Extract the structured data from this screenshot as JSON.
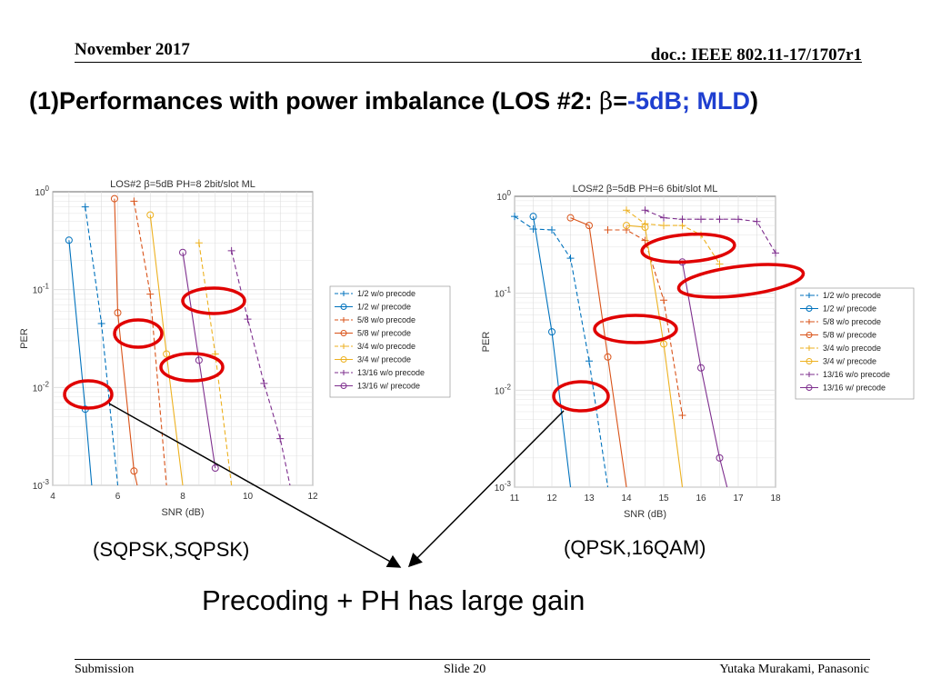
{
  "header": {
    "date": "November 2017",
    "doc": "doc.: IEEE 802.11-17/1707r1"
  },
  "title": {
    "prefix": "(1)Performances with power imbalance (LOS #2: ",
    "beta": "β",
    "eq": "=",
    "value": "-5dB; MLD",
    "close": ")"
  },
  "labels": {
    "left": "(SQPSK,SQPSK)",
    "right": "(QPSK,16QAM)",
    "gain": "Precoding + PH has large gain"
  },
  "footer": {
    "left": "Submission",
    "center": "Slide 20",
    "right": "Yutaka Murakami, Panasonic"
  },
  "colors": {
    "blue": "#0072BD",
    "orange": "#D95319",
    "yellow": "#EDB120",
    "purple": "#7E2F8E",
    "annotation": "#e00000"
  },
  "chart_data": [
    {
      "type": "line",
      "title": "LOS#2 β=5dB PH=8 2bit/slot ML",
      "xlabel": "SNR (dB)",
      "ylabel": "PER",
      "xlim": [
        4,
        12
      ],
      "ylim": [
        0.001,
        1
      ],
      "yscale": "log",
      "xticks": [
        "4",
        "6",
        "8",
        "10",
        "12"
      ],
      "yticks": [
        "10^0",
        "10^-1",
        "10^-2",
        "10^-3"
      ],
      "grid": true,
      "legend_position": "right",
      "series": [
        {
          "name": "1/2 w/o precode",
          "color": "blue",
          "dash": true,
          "marker": "+",
          "x": [
            5.0,
            5.5,
            6.0
          ],
          "y": [
            0.7,
            0.045,
            0.001
          ]
        },
        {
          "name": "1/2 w/ precode",
          "color": "blue",
          "dash": false,
          "marker": "o",
          "x": [
            4.5,
            5.0,
            5.2
          ],
          "y": [
            0.32,
            0.006,
            0.001
          ]
        },
        {
          "name": "5/8 w/o precode",
          "color": "orange",
          "dash": true,
          "marker": "+",
          "x": [
            6.5,
            7.0,
            7.5
          ],
          "y": [
            0.8,
            0.09,
            0.001
          ]
        },
        {
          "name": "5/8 w/ precode",
          "color": "orange",
          "dash": false,
          "marker": "o",
          "x": [
            5.9,
            6.0,
            6.5,
            6.6
          ],
          "y": [
            0.85,
            0.058,
            0.0014,
            0.001
          ]
        },
        {
          "name": "3/4 w/o precode",
          "color": "yellow",
          "dash": true,
          "marker": "+",
          "x": [
            8.5,
            9.0,
            9.5
          ],
          "y": [
            0.3,
            0.022,
            0.001
          ]
        },
        {
          "name": "3/4 w/ precode",
          "color": "yellow",
          "dash": false,
          "marker": "o",
          "x": [
            7.0,
            7.5,
            8.0
          ],
          "y": [
            0.58,
            0.022,
            0.001
          ]
        },
        {
          "name": "13/16 w/o precode",
          "color": "purple",
          "dash": true,
          "marker": "+",
          "x": [
            9.5,
            10.0,
            10.5,
            11.0,
            11.3
          ],
          "y": [
            0.25,
            0.05,
            0.011,
            0.003,
            0.001
          ]
        },
        {
          "name": "13/16 w/ precode",
          "color": "purple",
          "dash": false,
          "marker": "o",
          "x": [
            8.0,
            8.5,
            9.0
          ],
          "y": [
            0.24,
            0.019,
            0.0015
          ]
        }
      ]
    },
    {
      "type": "line",
      "title": "LOS#2 β=5dB PH=6 6bit/slot ML",
      "xlabel": "SNR (dB)",
      "ylabel": "PER",
      "xlim": [
        11,
        18
      ],
      "ylim": [
        0.001,
        1
      ],
      "yscale": "log",
      "xticks": [
        "11",
        "12",
        "13",
        "14",
        "15",
        "16",
        "17",
        "18"
      ],
      "yticks": [
        "10^0",
        "10^-1",
        "10^-2",
        "10^-3"
      ],
      "grid": true,
      "legend_position": "right",
      "series": [
        {
          "name": "1/2 w/o precode",
          "color": "blue",
          "dash": true,
          "marker": "+",
          "x": [
            11.0,
            11.5,
            12.0,
            12.5,
            13.0,
            13.5
          ],
          "y": [
            0.62,
            0.46,
            0.45,
            0.23,
            0.02,
            0.001
          ]
        },
        {
          "name": "1/2 w/ precode",
          "color": "blue",
          "dash": false,
          "marker": "o",
          "x": [
            11.5,
            12.0,
            12.5
          ],
          "y": [
            0.62,
            0.04,
            0.001
          ]
        },
        {
          "name": "5/8 w/o precode",
          "color": "orange",
          "dash": true,
          "marker": "+",
          "x": [
            13.5,
            14.0,
            14.5,
            15.0,
            15.5
          ],
          "y": [
            0.45,
            0.45,
            0.35,
            0.085,
            0.0055
          ]
        },
        {
          "name": "5/8 w/ precode",
          "color": "orange",
          "dash": false,
          "marker": "o",
          "x": [
            12.5,
            13.0,
            13.5,
            14.0
          ],
          "y": [
            0.6,
            0.5,
            0.022,
            0.001
          ]
        },
        {
          "name": "3/4 w/o precode",
          "color": "yellow",
          "dash": true,
          "marker": "+",
          "x": [
            14.0,
            14.5,
            15.0,
            15.5,
            16.0,
            16.5
          ],
          "y": [
            0.72,
            0.52,
            0.5,
            0.5,
            0.4,
            0.2
          ]
        },
        {
          "name": "3/4 w/ precode",
          "color": "yellow",
          "dash": false,
          "marker": "o",
          "x": [
            14.0,
            14.5,
            15.0,
            15.5
          ],
          "y": [
            0.5,
            0.48,
            0.03,
            0.001
          ]
        },
        {
          "name": "13/16 w/o precode",
          "color": "purple",
          "dash": true,
          "marker": "+",
          "x": [
            14.5,
            15.0,
            15.5,
            16.0,
            16.5,
            17.0,
            17.5,
            18.0
          ],
          "y": [
            0.72,
            0.6,
            0.58,
            0.58,
            0.58,
            0.58,
            0.55,
            0.26
          ]
        },
        {
          "name": "13/16 w/ precode",
          "color": "purple",
          "dash": false,
          "marker": "o",
          "x": [
            15.5,
            16.0,
            16.5,
            16.7
          ],
          "y": [
            0.21,
            0.017,
            0.002,
            0.001
          ]
        }
      ]
    }
  ]
}
